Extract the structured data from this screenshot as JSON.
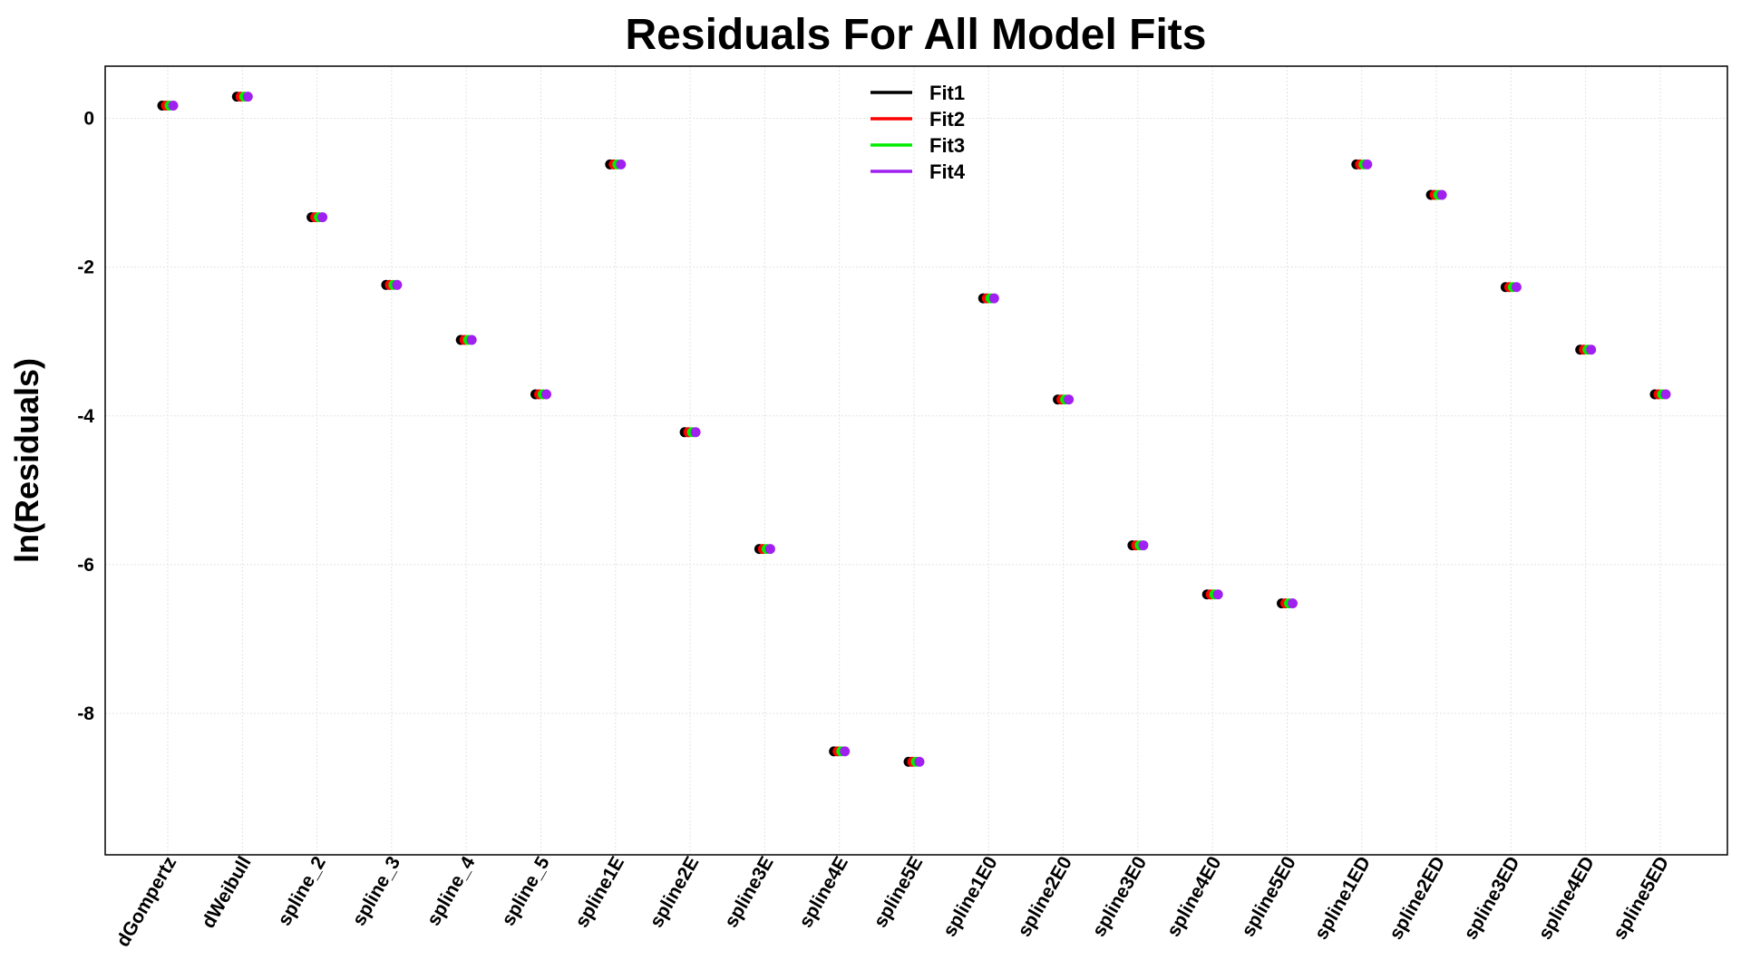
{
  "chart_data": {
    "type": "scatter",
    "title": "Residuals For All Model Fits",
    "xlabel": "",
    "ylabel": "ln(Residuals)",
    "ylim": [
      -9.9,
      0.7
    ],
    "yticks": [
      0,
      -2,
      -4,
      -6,
      -8
    ],
    "grid": true,
    "legend_position": "top-center",
    "categories": [
      "dGompertz",
      "dWeibull",
      "spline_2",
      "spline_3",
      "spline_4",
      "spline_5",
      "spline1E",
      "spline2E",
      "spline3E",
      "spline4E",
      "spline5E",
      "spline1E0",
      "spline2E0",
      "spline3E0",
      "spline4E0",
      "spline5E0",
      "spline1ED",
      "spline2ED",
      "spline3ED",
      "spline4ED",
      "spline5ED"
    ],
    "series": [
      {
        "name": "Fit1",
        "color": "#000000",
        "values": [
          0.17,
          0.29,
          -1.33,
          -2.24,
          -2.98,
          -3.71,
          -0.62,
          -4.22,
          -5.79,
          -8.51,
          -8.65,
          -2.42,
          -3.78,
          -5.74,
          -6.4,
          -6.52,
          -0.62,
          -1.03,
          -2.27,
          -3.11,
          -3.71
        ]
      },
      {
        "name": "Fit2",
        "color": "#ff0000",
        "values": [
          0.17,
          0.29,
          -1.33,
          -2.24,
          -2.98,
          -3.71,
          -0.62,
          -4.22,
          -5.79,
          -8.51,
          -8.65,
          -2.42,
          -3.78,
          -5.74,
          -6.4,
          -6.52,
          -0.62,
          -1.03,
          -2.27,
          -3.11,
          -3.71
        ]
      },
      {
        "name": "Fit3",
        "color": "#00ee00",
        "values": [
          0.17,
          0.29,
          -1.33,
          -2.24,
          -2.98,
          -3.71,
          -0.62,
          -4.22,
          -5.79,
          -8.51,
          -8.65,
          -2.42,
          -3.78,
          -5.74,
          -6.4,
          -6.52,
          -0.62,
          -1.03,
          -2.27,
          -3.11,
          -3.71
        ]
      },
      {
        "name": "Fit4",
        "color": "#a020f0",
        "values": [
          0.17,
          0.29,
          -1.33,
          -2.24,
          -2.98,
          -3.71,
          -0.62,
          -4.22,
          -5.79,
          -8.51,
          -8.65,
          -2.42,
          -3.78,
          -5.74,
          -6.4,
          -6.52,
          -0.62,
          -1.03,
          -2.27,
          -3.11,
          -3.71
        ]
      }
    ]
  }
}
